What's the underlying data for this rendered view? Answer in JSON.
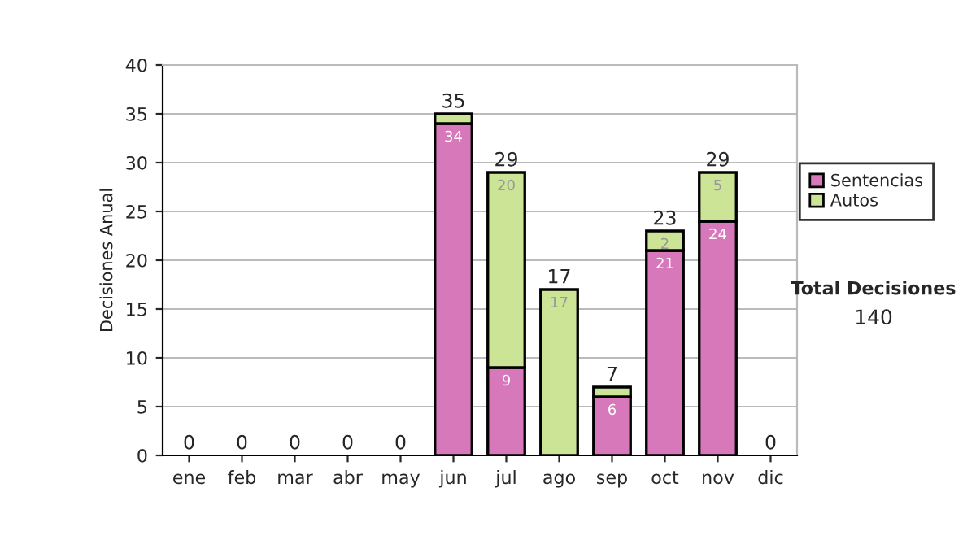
{
  "chart_data": {
    "type": "bar",
    "stacked": true,
    "ylabel": "Decisiones Anual",
    "categories": [
      "ene",
      "feb",
      "mar",
      "abr",
      "may",
      "jun",
      "jul",
      "ago",
      "sep",
      "oct",
      "nov",
      "dic"
    ],
    "series": [
      {
        "name": "Sentencias",
        "color": "#d778bb",
        "values": [
          0,
          0,
          0,
          0,
          0,
          34,
          9,
          0,
          6,
          21,
          24,
          0
        ],
        "value_labels": [
          null,
          null,
          null,
          null,
          null,
          "34",
          "9",
          null,
          "6",
          "21",
          "24",
          null
        ]
      },
      {
        "name": "Autos",
        "color": "#cce496",
        "values": [
          0,
          0,
          0,
          0,
          0,
          1,
          20,
          17,
          1,
          2,
          5,
          0
        ],
        "value_labels": [
          null,
          null,
          null,
          null,
          null,
          null,
          "20",
          "17",
          null,
          "2",
          "5",
          null
        ]
      }
    ],
    "totals": [
      "0",
      "0",
      "0",
      "0",
      "0",
      "35",
      "29",
      "17",
      "7",
      "23",
      "29",
      "0"
    ],
    "ylim": [
      0,
      40
    ],
    "yticks": [
      0,
      5,
      10,
      15,
      20,
      25,
      30,
      35,
      40
    ],
    "grid": "y",
    "legend": "right",
    "annotations": [
      "Total Decisiones",
      "140"
    ]
  }
}
